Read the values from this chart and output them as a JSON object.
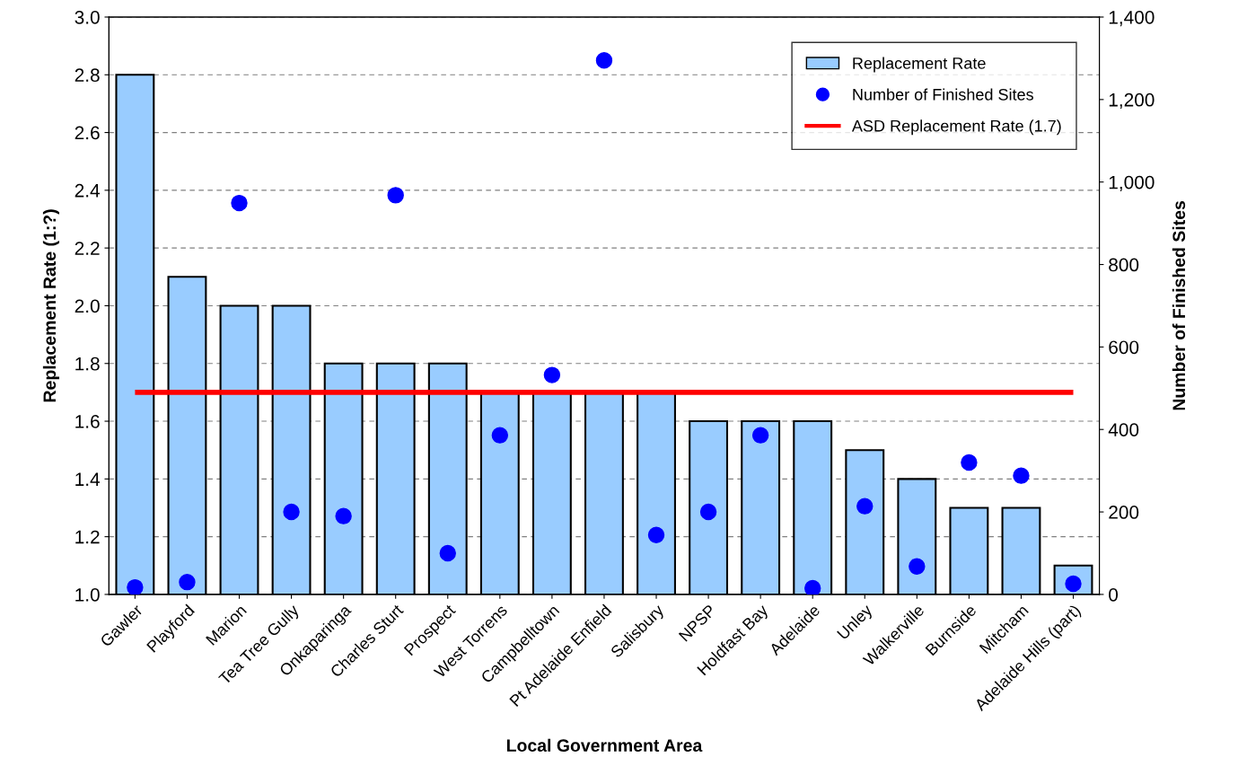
{
  "chart_data": {
    "type": "bar",
    "xlabel": "Local Government Area",
    "ylabel": "Replacement Rate (1:?)",
    "y2label": "Number of Finished Sites",
    "categories": [
      "Gawler",
      "Playford",
      "Marion",
      "Tea Tree Gully",
      "Onkaparinga",
      "Charles Sturt",
      "Prospect",
      "West Torrens",
      "Campbelltown",
      "Pt Adelaide Enfield",
      "Salisbury",
      "NPSP",
      "Holdfast Bay",
      "Adelaide",
      "Unley",
      "Walkerville",
      "Burnside",
      "Mitcham",
      "Adelaide Hills (part)"
    ],
    "series": [
      {
        "name": "Replacement Rate",
        "color": "#99ccff",
        "values": [
          2.8,
          2.1,
          2.0,
          2.0,
          1.8,
          1.8,
          1.8,
          1.7,
          1.7,
          1.7,
          1.7,
          1.6,
          1.6,
          1.6,
          1.5,
          1.4,
          1.3,
          1.3,
          1.1
        ]
      },
      {
        "name": "Number of Finished Sites",
        "type": "scatter",
        "axis": "y2",
        "color": "#0000ff",
        "marker": "circle",
        "values": [
          17,
          30,
          949,
          200,
          190,
          968,
          100,
          386,
          532,
          1295,
          144,
          200,
          386,
          15,
          214,
          68,
          320,
          288,
          26
        ]
      }
    ],
    "ref_lines": [
      {
        "axis": "y",
        "value": 1.7,
        "label": "ASD Replacement Rate (1.7)",
        "color": "#ff0000",
        "line_style": "solid"
      }
    ],
    "ylim": [
      1.0,
      3.0
    ],
    "yticks": [
      {
        "value": 1.0,
        "label": "1.0"
      },
      {
        "value": 1.2,
        "label": "1.2"
      },
      {
        "value": 1.4,
        "label": "1.4"
      },
      {
        "value": 1.6,
        "label": "1.6"
      },
      {
        "value": 1.8,
        "label": "1.8"
      },
      {
        "value": 2.0,
        "label": "2.0"
      },
      {
        "value": 2.2,
        "label": "2.2"
      },
      {
        "value": 2.4,
        "label": "2.4"
      },
      {
        "value": 2.6,
        "label": "2.6"
      },
      {
        "value": 2.8,
        "label": "2.8"
      },
      {
        "value": 3.0,
        "label": "3.0"
      }
    ],
    "y2lim": [
      0,
      1400
    ],
    "y2ticks": [
      0,
      200,
      400,
      600,
      800,
      {
        "value": 1000,
        "label": "1,000"
      },
      {
        "value": 1200,
        "label": "1,200"
      },
      {
        "value": 1400,
        "label": "1,400"
      }
    ],
    "grid": "y",
    "legend": "top right"
  }
}
